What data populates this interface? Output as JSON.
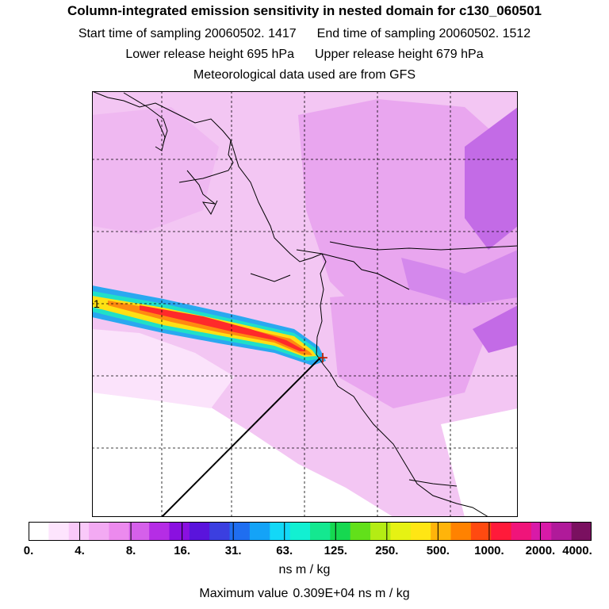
{
  "header": {
    "title": "Column-integrated emission sensitivity in nested domain for c130_060501",
    "start_label": "Start time of sampling 20060502.  1417",
    "end_label": "End time of sampling 20060502.  1512",
    "lower_label": "Lower release height  695 hPa",
    "upper_label": "Upper release height  679 hPa",
    "met_label": "Meteorological data used are from GFS"
  },
  "colorbar": {
    "colors": [
      "#ffffff",
      "#fde4fd",
      "#f9c9f9",
      "#f3aaf3",
      "#ec8aee",
      "#d560ea",
      "#b52de5",
      "#8a10e0",
      "#5a14dc",
      "#3b3fe0",
      "#1f6ef0",
      "#14a3f7",
      "#13d8f7",
      "#12f0d2",
      "#14e890",
      "#16d850",
      "#62e01a",
      "#b4ec14",
      "#e6f213",
      "#ffe614",
      "#ffb40a",
      "#ff8200",
      "#ff4a10",
      "#ff1a3a",
      "#f0147a",
      "#d81aa8",
      "#b01a9a",
      "#7a1060"
    ],
    "tick_labels": [
      "0.",
      "4.",
      "8.",
      "16.",
      "31.",
      "63.",
      "125.",
      "250.",
      "500.",
      "1000.",
      "2000.",
      "4000."
    ],
    "units": "ns m / kg"
  },
  "footer": {
    "max_label": "Maximum value",
    "max_value": "0.309E+04 ns m / kg"
  },
  "map": {
    "release_marker": "+",
    "start_marker": "1",
    "background_colors": {
      "light": "#f3c6f3",
      "mid": "#e9a6ef",
      "dark": "#c36be6"
    },
    "plume_colors": {
      "edge": "#2aa8f0",
      "teal": "#20e0c8",
      "yellow": "#ffe014",
      "orange": "#ff8a10",
      "red": "#ff2a2a"
    }
  }
}
